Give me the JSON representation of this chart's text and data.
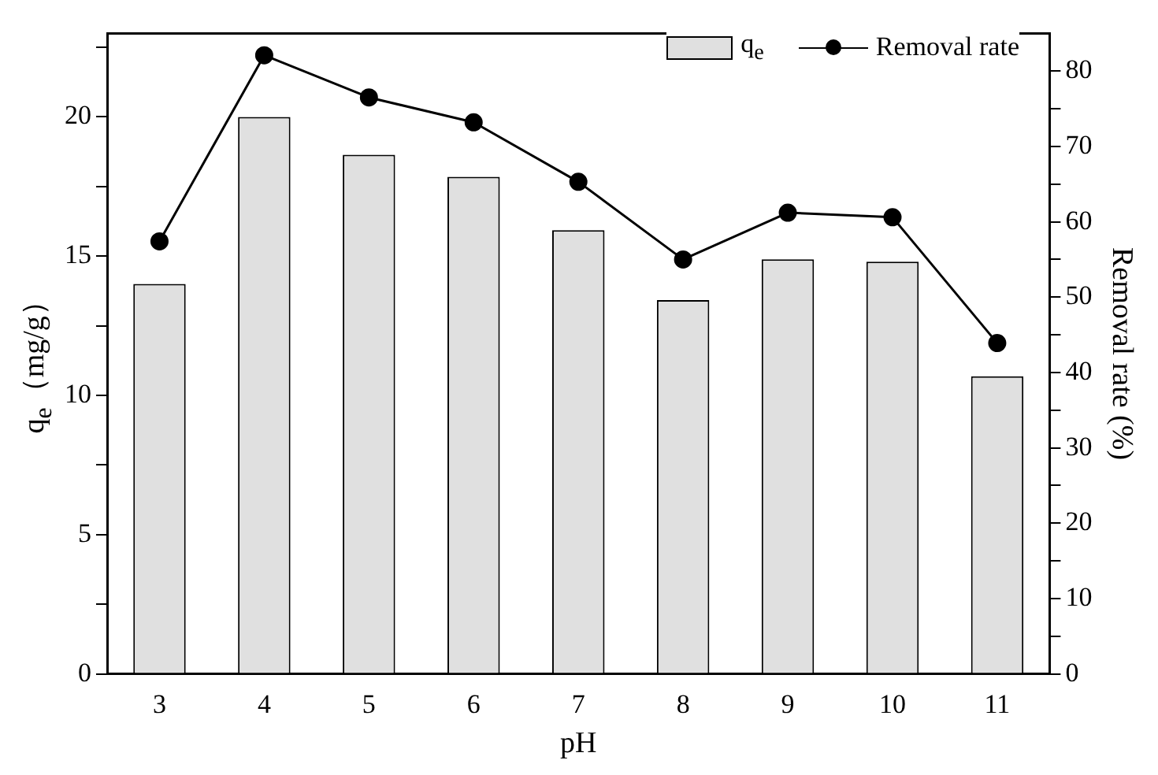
{
  "chart_data": {
    "type": "bar",
    "xlabel": "pH",
    "ylabel": "q$_{e}$（mg/g）",
    "y2label": "Removal rate (%)",
    "categories": [
      "3",
      "4",
      "5",
      "6",
      "7",
      "8",
      "9",
      "10",
      "11"
    ],
    "series": [
      {
        "name": "q$_{e}$",
        "color": "#e0e0e0",
        "values": [
          14.0,
          20.0,
          18.64,
          17.85,
          15.93,
          13.42,
          14.89,
          14.8,
          10.69
        ]
      },
      {
        "name": "Removal rate",
        "type": "line",
        "axis": "y2",
        "color": "#000000",
        "values": [
          57.4,
          82.1,
          76.5,
          73.2,
          65.3,
          55.0,
          61.2,
          60.6,
          43.9
        ]
      }
    ],
    "ylim": [
      0,
      23
    ],
    "yticks": [
      0,
      {
        "value": 2.5,
        "label": null
      },
      5,
      {
        "value": 7.5,
        "label": null
      },
      10,
      {
        "value": 12.5,
        "label": null
      },
      15,
      {
        "value": 17.5,
        "label": null
      },
      20,
      {
        "value": 22.5,
        "label": null
      }
    ],
    "y2lim": [
      0,
      85
    ],
    "y2ticks": [
      0,
      {
        "value": 5,
        "label": null
      },
      10,
      {
        "value": 15,
        "label": null
      },
      20,
      {
        "value": 25,
        "label": null
      },
      30,
      {
        "value": 35,
        "label": null
      },
      40,
      {
        "value": 45,
        "label": null
      },
      50,
      {
        "value": 55,
        "label": null
      },
      60,
      {
        "value": 65,
        "label": null
      },
      70,
      {
        "value": 75,
        "label": null
      },
      80
    ],
    "grid": false,
    "legend": "top right",
    "marker": "circle",
    "line_style": "solid"
  }
}
